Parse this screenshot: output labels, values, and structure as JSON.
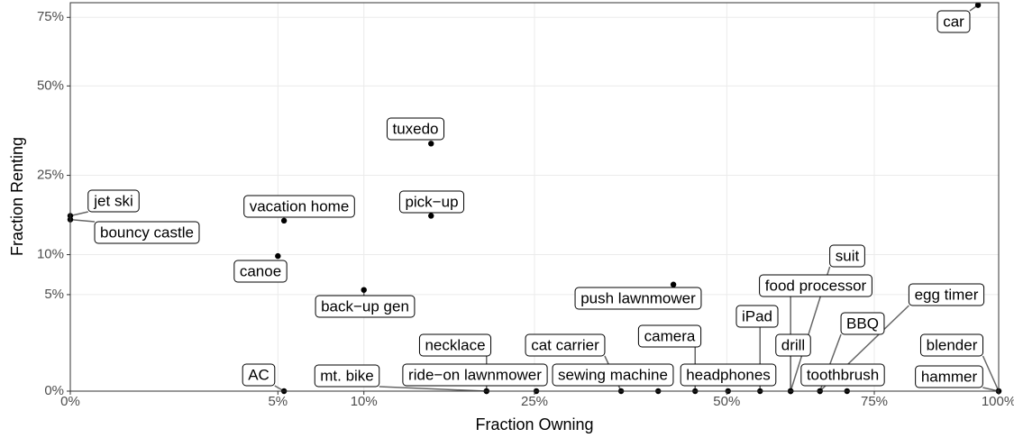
{
  "chart_data": {
    "type": "scatter",
    "x_label": "Fraction Owning",
    "y_label": "Fraction Renting",
    "xscale": "sqrt",
    "yscale": "sqrt",
    "grid": true,
    "color": "#000000",
    "xlim": [
      0,
      100
    ],
    "ylim": [
      0,
      81
    ],
    "xticks": [
      {
        "value": 0,
        "label": "0%"
      },
      {
        "value": 5,
        "label": "5%"
      },
      {
        "value": 10,
        "label": "10%"
      },
      {
        "value": 25,
        "label": "25%"
      },
      {
        "value": 50,
        "label": "50%"
      },
      {
        "value": 75,
        "label": "75%"
      },
      {
        "value": 100,
        "label": "100%"
      }
    ],
    "yticks": [
      {
        "value": 0,
        "label": "0%"
      },
      {
        "value": 5,
        "label": "5%"
      },
      {
        "value": 10,
        "label": "10%"
      },
      {
        "value": 25,
        "label": "25%"
      },
      {
        "value": 50,
        "label": "50%"
      },
      {
        "value": 75,
        "label": "75%"
      }
    ],
    "labels": [
      "car",
      "tuxedo",
      "pick−up",
      "vacation home",
      "jet ski",
      "bouncy castle",
      "canoe",
      "back−up gen",
      "push lawnmower",
      "food processor",
      "suit",
      "egg timer",
      "iPad",
      "BBQ",
      "drill",
      "camera",
      "necklace",
      "cat carrier",
      "blender",
      "AC",
      "mt. bike",
      "ride−on lawnmower",
      "sewing machine",
      "headphones",
      "toothbrush",
      "hammer"
    ],
    "x": [
      95.6,
      15.1,
      15.1,
      5.3,
      0,
      0,
      5.0,
      10.0,
      42.2,
      60.2,
      60.2,
      65.2,
      55.2,
      65.2,
      60.2,
      45.3,
      20.1,
      35.2,
      100,
      5.3,
      20.1,
      25.2,
      40.1,
      50.2,
      70.0,
      100
    ],
    "values": [
      80,
      32.9,
      16.5,
      15.6,
      16.5,
      15.8,
      9.8,
      5.5,
      6.1,
      0,
      0,
      0,
      0,
      0,
      0,
      0,
      0,
      0,
      0,
      0,
      0,
      0,
      0,
      0,
      0,
      0
    ]
  }
}
